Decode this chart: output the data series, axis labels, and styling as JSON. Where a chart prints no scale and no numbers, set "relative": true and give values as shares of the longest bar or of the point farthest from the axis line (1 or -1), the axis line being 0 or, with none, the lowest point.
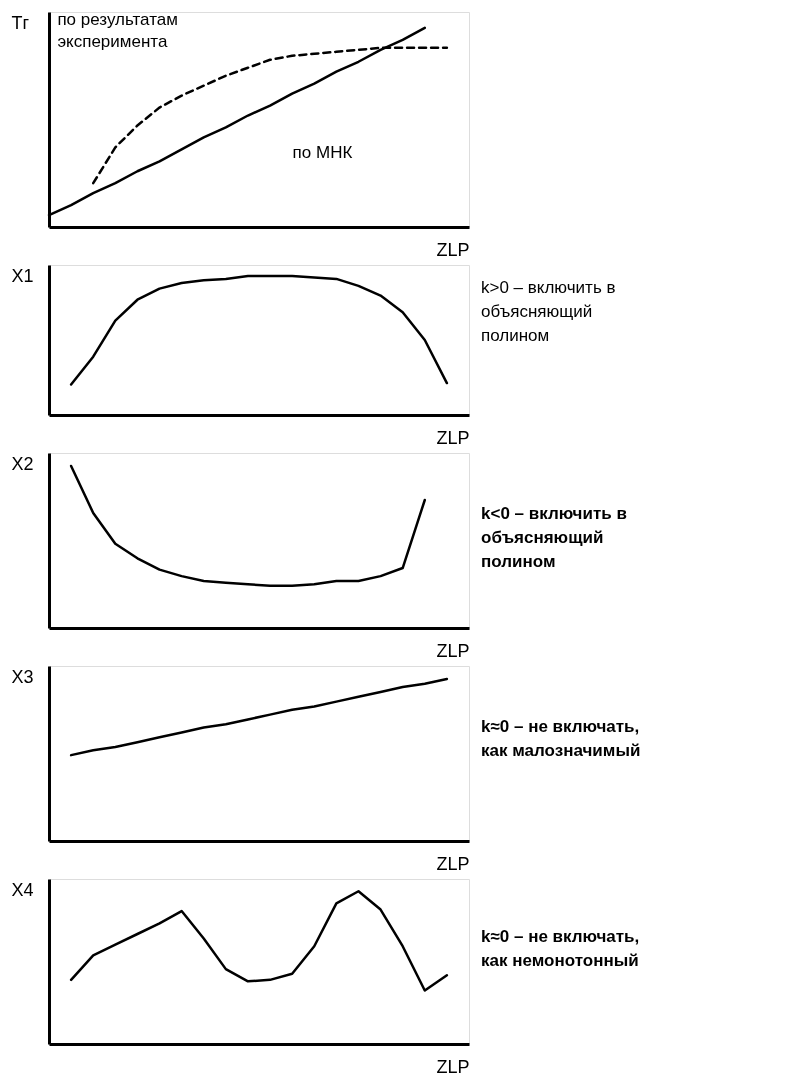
{
  "chart_data": [
    {
      "type": "line",
      "relative": true,
      "ylabel": "Тг",
      "xlabel": "ZLP",
      "tick_labels": false,
      "grid": false,
      "categories": [
        null,
        null,
        null,
        null,
        null,
        null,
        null,
        null,
        null,
        null,
        null,
        null,
        null,
        null,
        null,
        null,
        null,
        null,
        null,
        null
      ],
      "series": [
        {
          "name": "по результатам эксперимента",
          "color": "#000000",
          "line_style": "dashed",
          "values": [
            null,
            null,
            0.22,
            0.4,
            0.51,
            0.6,
            0.66,
            0.71,
            0.76,
            0.8,
            0.84,
            0.86,
            0.87,
            0.88,
            0.89,
            0.9,
            0.9,
            0.9,
            0.9,
            null
          ]
        },
        {
          "name": "по МНК",
          "color": "#000000",
          "line_style": "solid",
          "values": [
            0.06,
            0.11,
            0.17,
            0.22,
            0.28,
            0.33,
            0.39,
            0.45,
            0.5,
            0.56,
            0.61,
            0.67,
            0.72,
            0.78,
            0.83,
            0.89,
            0.94,
            1.0,
            null,
            null
          ]
        }
      ]
    },
    {
      "type": "line",
      "relative": true,
      "ylabel": "X1",
      "xlabel": "ZLP",
      "tick_labels": false,
      "grid": false,
      "categories": [
        null,
        null,
        null,
        null,
        null,
        null,
        null,
        null,
        null,
        null,
        null,
        null,
        null,
        null,
        null,
        null,
        null,
        null,
        null,
        null
      ],
      "annotations": [
        "k>0 – включить в объясняющий полином"
      ],
      "series": [
        {
          "color": "#000000",
          "values": [
            null,
            0.22,
            0.42,
            0.68,
            0.83,
            0.91,
            0.95,
            0.97,
            0.98,
            1.0,
            1.0,
            1.0,
            0.99,
            0.98,
            0.93,
            0.86,
            0.74,
            0.54,
            0.23,
            null
          ]
        }
      ]
    },
    {
      "type": "line",
      "relative": true,
      "ylabel": "X2",
      "xlabel": "ZLP",
      "tick_labels": false,
      "grid": false,
      "categories": [
        null,
        null,
        null,
        null,
        null,
        null,
        null,
        null,
        null,
        null,
        null,
        null,
        null,
        null,
        null,
        null,
        null,
        null,
        null,
        null
      ],
      "annotations": [
        "k<0 – включить в объясняющий полином"
      ],
      "series": [
        {
          "color": "#000000",
          "values": [
            null,
            1.0,
            0.71,
            0.52,
            0.43,
            0.36,
            0.32,
            0.29,
            0.28,
            0.27,
            0.26,
            0.26,
            0.27,
            0.29,
            0.29,
            0.32,
            0.37,
            0.79,
            null,
            null
          ]
        }
      ]
    },
    {
      "type": "line",
      "relative": true,
      "ylabel": "X3",
      "xlabel": "ZLP",
      "tick_labels": false,
      "grid": false,
      "categories": [
        null,
        null,
        null,
        null,
        null,
        null,
        null,
        null,
        null,
        null,
        null,
        null,
        null,
        null,
        null,
        null,
        null,
        null,
        null,
        null
      ],
      "annotations": [
        "k≈0 – не включать, как малозначимый"
      ],
      "series": [
        {
          "color": "#000000",
          "values": [
            null,
            0.53,
            0.56,
            0.58,
            0.61,
            0.64,
            0.67,
            0.7,
            0.72,
            0.75,
            0.78,
            0.81,
            0.83,
            0.86,
            0.89,
            0.92,
            0.95,
            0.97,
            1.0,
            null
          ]
        }
      ]
    },
    {
      "type": "line",
      "relative": true,
      "ylabel": "X4",
      "xlabel": "ZLP",
      "tick_labels": false,
      "grid": false,
      "categories": [
        null,
        null,
        null,
        null,
        null,
        null,
        null,
        null,
        null,
        null,
        null,
        null,
        null,
        null,
        null,
        null,
        null,
        null,
        null,
        null
      ],
      "annotations": [
        "k≈0 – не включать, как немонотонный"
      ],
      "series": [
        {
          "color": "#000000",
          "values": [
            null,
            0.42,
            0.58,
            0.65,
            0.72,
            0.79,
            0.87,
            0.69,
            0.49,
            0.41,
            0.42,
            0.46,
            0.64,
            0.92,
            1.0,
            0.88,
            0.64,
            0.35,
            0.45,
            null
          ]
        }
      ]
    }
  ]
}
